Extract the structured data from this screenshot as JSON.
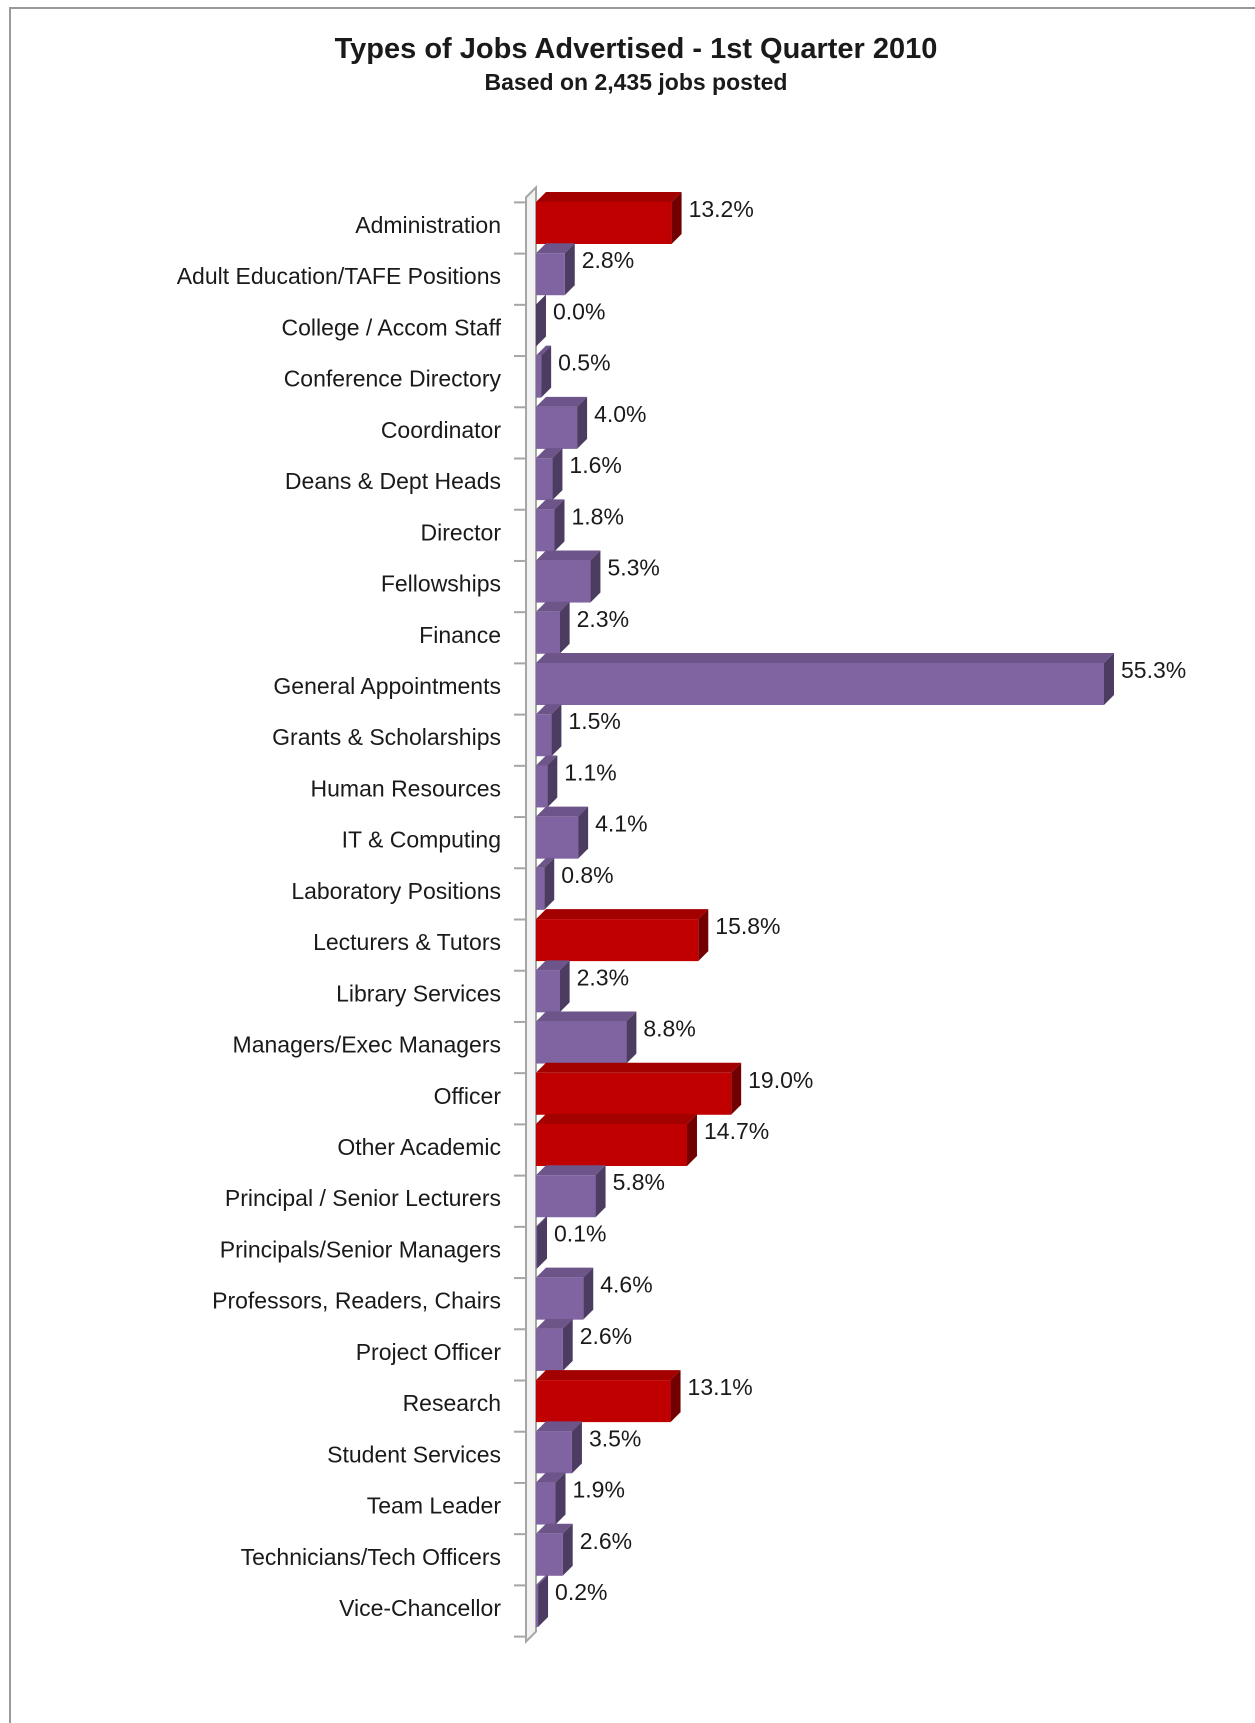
{
  "chart_data": {
    "type": "bar3d_horizontal",
    "title": "Types of Jobs Advertised - 1st Quarter 2010",
    "subtitle": "Based on 2,435 jobs posted",
    "categories": [
      "Administration",
      "Adult Education/TAFE Positions",
      "College / Accom Staff",
      "Conference Directory",
      "Coordinator",
      "Deans & Dept Heads",
      "Director",
      "Fellowships",
      "Finance",
      "General Appointments",
      "Grants & Scholarships",
      "Human Resources",
      "IT & Computing",
      "Laboratory Positions",
      "Lecturers & Tutors",
      "Library Services",
      "Managers/Exec Managers",
      "Officer",
      "Other Academic",
      "Principal / Senior Lecturers",
      "Principals/Senior Managers",
      "Professors, Readers, Chairs",
      "Project Officer",
      "Research",
      "Student Services",
      "Team Leader",
      "Technicians/Tech Officers",
      "Vice-Chancellor"
    ],
    "values": [
      13.2,
      2.8,
      0.0,
      0.5,
      4.0,
      1.6,
      1.8,
      5.3,
      2.3,
      55.3,
      1.5,
      1.1,
      4.1,
      0.8,
      15.8,
      2.3,
      8.8,
      19.0,
      14.7,
      5.8,
      0.1,
      4.6,
      2.6,
      13.1,
      3.5,
      1.9,
      2.6,
      0.2
    ],
    "value_labels": [
      "13.2%",
      "2.8%",
      "0.0%",
      "0.5%",
      "4.0%",
      "1.6%",
      "1.8%",
      "5.3%",
      "2.3%",
      "55.3%",
      "1.5%",
      "1.1%",
      "4.1%",
      "0.8%",
      "15.8%",
      "2.3%",
      "8.8%",
      "19.0%",
      "14.7%",
      "5.8%",
      "0.1%",
      "4.6%",
      "2.6%",
      "13.1%",
      "3.5%",
      "1.9%",
      "2.6%",
      "0.2%"
    ],
    "colors": [
      "#c00000",
      "#8064a2",
      "#8064a2",
      "#8064a2",
      "#8064a2",
      "#8064a2",
      "#8064a2",
      "#8064a2",
      "#8064a2",
      "#8064a2",
      "#8064a2",
      "#8064a2",
      "#8064a2",
      "#8064a2",
      "#c00000",
      "#8064a2",
      "#8064a2",
      "#c00000",
      "#c00000",
      "#8064a2",
      "#8064a2",
      "#8064a2",
      "#8064a2",
      "#c00000",
      "#8064a2",
      "#8064a2",
      "#8064a2",
      "#8064a2"
    ]
  }
}
